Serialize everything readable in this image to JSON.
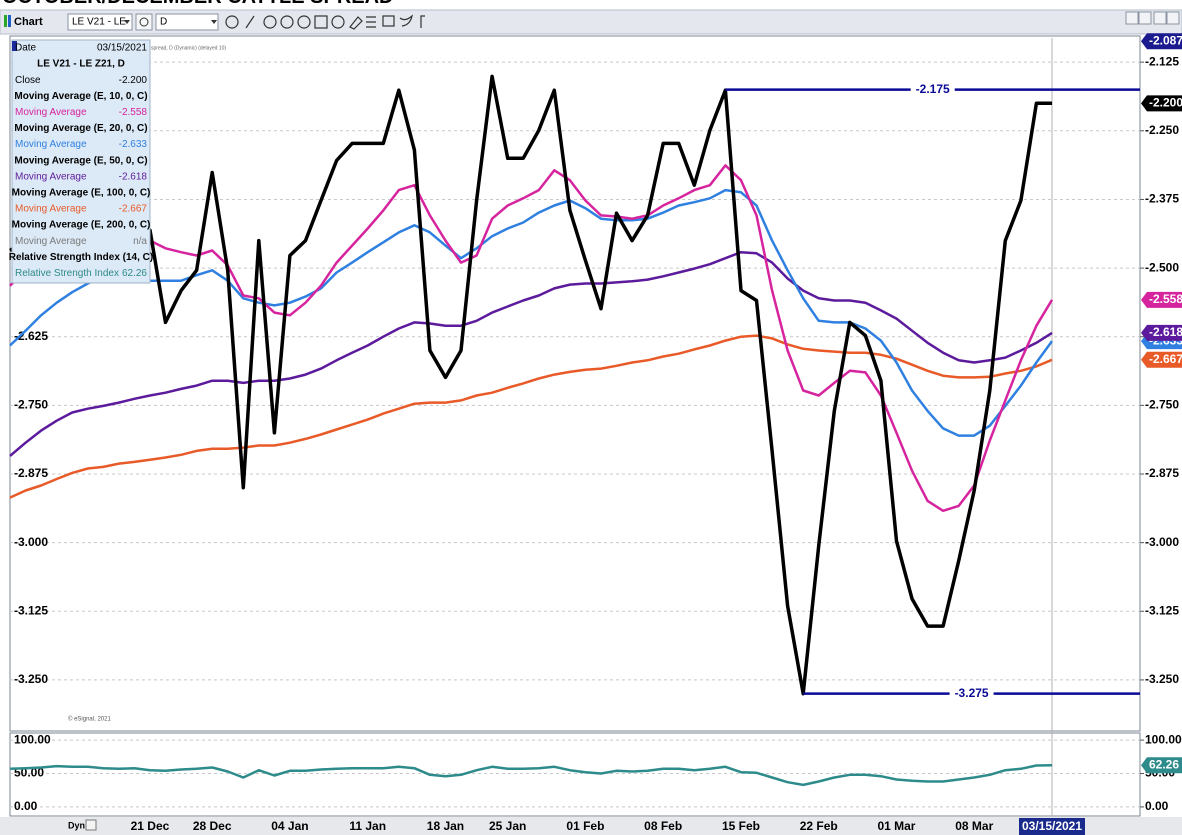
{
  "title": "OCTOBER/DECEMBER CATTLE SPREAD",
  "toolbar": {
    "app": "Chart",
    "symbol": "LE V21 - LE",
    "interval": "D"
  },
  "footer": {
    "mode": "Dyn"
  },
  "copyright": "© eSignal, 2021",
  "chart_data": [
    {
      "type": "line",
      "symbol": "LE V21 - LE Z21, D",
      "date_label": "Date",
      "status": "spread, D (Dynamic) (delayed 10)",
      "categories": [
        null,
        null,
        null,
        null,
        null,
        null,
        null,
        null,
        null,
        "21 Dec",
        null,
        null,
        null,
        "28 Dec",
        null,
        null,
        null,
        null,
        "04 Jan",
        null,
        null,
        null,
        null,
        "11 Jan",
        null,
        null,
        null,
        null,
        "18 Jan",
        null,
        null,
        null,
        "25 Jan",
        null,
        null,
        null,
        null,
        "01 Feb",
        null,
        null,
        null,
        null,
        "08 Feb",
        null,
        null,
        null,
        null,
        "15 Feb",
        null,
        null,
        null,
        null,
        "22 Feb",
        null,
        null,
        null,
        null,
        "01 Mar",
        null,
        null,
        null,
        null,
        "08 Mar",
        null,
        null,
        null,
        null,
        "03/15/2021"
      ],
      "series": [
        {
          "name": "Close",
          "color": "#000000",
          "last_label": "-2.200",
          "values": [
            -2.468,
            -2.45,
            -2.431,
            -2.459,
            -2.44,
            -2.422,
            -2.45,
            -2.431,
            -2.44,
            -2.431,
            -2.599,
            -2.541,
            -2.504,
            -2.326,
            -2.504,
            -2.9,
            -2.45,
            -2.8,
            -2.477,
            -2.45,
            -2.377,
            -2.304,
            -2.273,
            -2.273,
            -2.273,
            -2.176,
            -2.285,
            -2.65,
            -2.699,
            -2.65,
            -2.377,
            -2.151,
            -2.3,
            -2.3,
            -2.249,
            -2.176,
            -2.395,
            -2.486,
            -2.574,
            -2.4,
            -2.45,
            -2.404,
            -2.273,
            -2.273,
            -2.349,
            -2.249,
            -2.176,
            -2.541,
            -2.559,
            -2.833,
            -3.115,
            -3.275,
            -3.006,
            -2.76,
            -2.599,
            -2.623,
            -2.705,
            -2.997,
            -3.102,
            -3.152,
            -3.152,
            -3.033,
            -2.905,
            -2.723,
            -2.45,
            -2.377,
            -2.2,
            -2.2
          ]
        },
        {
          "name": "Moving Average",
          "study": "Moving Average (E, 10, 0, C)",
          "color": "#d6249f",
          "values": [
            -2.532,
            -2.504,
            -2.482,
            -2.464,
            -2.453,
            -2.446,
            -2.442,
            -2.444,
            -2.446,
            -2.45,
            -2.464,
            -2.471,
            -2.477,
            -2.468,
            -2.495,
            -2.55,
            -2.555,
            -2.581,
            -2.586,
            -2.563,
            -2.532,
            -2.49,
            -2.459,
            -2.428,
            -2.395,
            -2.358,
            -2.349,
            -2.404,
            -2.45,
            -2.49,
            -2.477,
            -2.41,
            -2.386,
            -2.373,
            -2.358,
            -2.322,
            -2.34,
            -2.377,
            -2.404,
            -2.406,
            -2.41,
            -2.404,
            -2.386,
            -2.373,
            -2.358,
            -2.349,
            -2.313,
            -2.34,
            -2.404,
            -2.541,
            -2.65,
            -2.723,
            -2.732,
            -2.709,
            -2.687,
            -2.69,
            -2.732,
            -2.8,
            -2.869,
            -2.924,
            -2.942,
            -2.933,
            -2.896,
            -2.814,
            -2.741,
            -2.668,
            -2.605,
            -2.558
          ]
        },
        {
          "name": "Moving Average",
          "study": "Moving Average (E, 20, 0, C)",
          "color": "#2f80e0",
          "values": [
            -2.641,
            -2.614,
            -2.586,
            -2.563,
            -2.544,
            -2.528,
            -2.515,
            -2.515,
            -2.519,
            -2.523,
            -2.523,
            -2.523,
            -2.513,
            -2.504,
            -2.523,
            -2.555,
            -2.563,
            -2.568,
            -2.563,
            -2.552,
            -2.537,
            -2.508,
            -2.49,
            -2.471,
            -2.453,
            -2.435,
            -2.422,
            -2.435,
            -2.459,
            -2.482,
            -2.464,
            -2.442,
            -2.428,
            -2.417,
            -2.399,
            -2.386,
            -2.377,
            -2.391,
            -2.41,
            -2.413,
            -2.413,
            -2.41,
            -2.399,
            -2.386,
            -2.38,
            -2.373,
            -2.358,
            -2.362,
            -2.386,
            -2.45,
            -2.504,
            -2.555,
            -2.596,
            -2.599,
            -2.599,
            -2.61,
            -2.632,
            -2.672,
            -2.723,
            -2.76,
            -2.792,
            -2.805,
            -2.805,
            -2.787,
            -2.751,
            -2.714,
            -2.672,
            -2.633
          ]
        },
        {
          "name": "Moving Average",
          "study": "Moving Average (E, 50, 0, C)",
          "color": "#5c1a9c",
          "values": [
            -2.842,
            -2.818,
            -2.796,
            -2.778,
            -2.763,
            -2.756,
            -2.751,
            -2.745,
            -2.738,
            -2.732,
            -2.727,
            -2.72,
            -2.714,
            -2.705,
            -2.705,
            -2.709,
            -2.705,
            -2.705,
            -2.701,
            -2.694,
            -2.683,
            -2.668,
            -2.654,
            -2.641,
            -2.625,
            -2.61,
            -2.599,
            -2.601,
            -2.605,
            -2.605,
            -2.596,
            -2.581,
            -2.57,
            -2.559,
            -2.55,
            -2.537,
            -2.53,
            -2.528,
            -2.528,
            -2.526,
            -2.524,
            -2.521,
            -2.515,
            -2.508,
            -2.501,
            -2.493,
            -2.482,
            -2.471,
            -2.473,
            -2.49,
            -2.519,
            -2.541,
            -2.555,
            -2.559,
            -2.559,
            -2.563,
            -2.577,
            -2.592,
            -2.614,
            -2.636,
            -2.654,
            -2.668,
            -2.672,
            -2.668,
            -2.663,
            -2.65,
            -2.636,
            -2.618
          ]
        },
        {
          "name": "Moving Average",
          "study": "Moving Average (E, 100, 0, C)",
          "color": "#e85a28",
          "values": [
            -2.918,
            -2.905,
            -2.896,
            -2.884,
            -2.873,
            -2.865,
            -2.862,
            -2.856,
            -2.853,
            -2.849,
            -2.845,
            -2.84,
            -2.833,
            -2.829,
            -2.829,
            -2.827,
            -2.823,
            -2.823,
            -2.818,
            -2.811,
            -2.803,
            -2.794,
            -2.785,
            -2.776,
            -2.765,
            -2.756,
            -2.747,
            -2.745,
            -2.745,
            -2.741,
            -2.732,
            -2.727,
            -2.718,
            -2.71,
            -2.701,
            -2.694,
            -2.689,
            -2.685,
            -2.683,
            -2.678,
            -2.672,
            -2.668,
            -2.661,
            -2.656,
            -2.648,
            -2.641,
            -2.632,
            -2.625,
            -2.623,
            -2.628,
            -2.639,
            -2.647,
            -2.65,
            -2.652,
            -2.654,
            -2.654,
            -2.658,
            -2.665,
            -2.676,
            -2.687,
            -2.696,
            -2.699,
            -2.699,
            -2.698,
            -2.692,
            -2.687,
            -2.679,
            -2.667
          ]
        }
      ],
      "na_study": {
        "study": "Moving Average (E, 200, 0, C)",
        "name": "Moving Average",
        "value": "n/a",
        "color": "#7a7a7a"
      },
      "ylim": [
        -3.343,
        -2.081
      ],
      "yticks": [
        -2.125,
        {
          "value": -2.25,
          "label": "-2.250"
        },
        -2.375,
        {
          "value": -2.5,
          "label": "-2.500"
        },
        -2.625,
        {
          "value": -2.75,
          "label": "-2.750"
        },
        -2.875,
        {
          "value": -3,
          "label": "-3.000"
        },
        -3.125,
        {
          "value": -3.25,
          "label": "-3.250"
        }
      ],
      "grid": true,
      "top_badge": -2.087,
      "hlines": [
        {
          "value": -2.175,
          "from": 46
        },
        {
          "value": -3.275,
          "from": 51
        }
      ],
      "hline_color": "#0a0a96"
    },
    {
      "type": "line",
      "series": [
        {
          "name": "Relative Strength Index",
          "study": "Relative Strength Index (14, C)",
          "color": "#2e8b8b",
          "values": [
            57,
            58,
            59,
            61,
            60,
            60,
            58,
            57,
            58,
            55,
            54,
            56,
            57,
            59,
            53,
            44,
            55,
            47,
            54,
            54,
            56,
            57,
            58,
            58,
            58,
            60,
            58,
            48,
            46,
            48,
            55,
            60,
            57,
            57,
            58,
            60,
            55,
            52,
            50,
            54,
            53,
            54,
            57,
            57,
            55,
            57,
            60,
            52,
            51,
            44,
            37,
            33,
            38,
            44,
            48,
            48,
            46,
            41,
            39,
            38,
            38,
            41,
            44,
            48,
            55,
            57,
            62,
            62.26
          ]
        }
      ],
      "ylim": [
        -13.6,
        110.6
      ],
      "yticks": [
        {
          "value": 0,
          "label": "0.00"
        },
        {
          "value": 50,
          "label": "50.00"
        },
        {
          "value": 100,
          "label": "100.00"
        }
      ],
      "grid": true
    }
  ]
}
